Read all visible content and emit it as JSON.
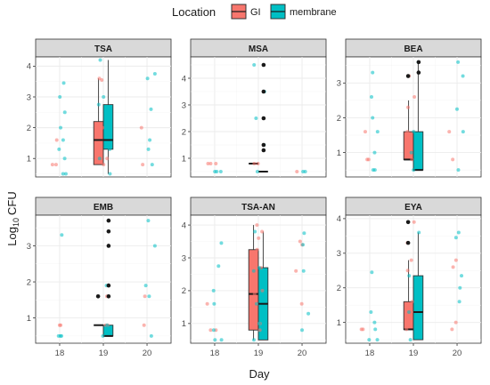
{
  "chart_data": {
    "type": "boxplot-faceted",
    "xlabel": "Day",
    "ylabel_base": "Log",
    "ylabel_sub": "10",
    "ylabel_unit": "CFU",
    "legend": {
      "title": "Location",
      "position": "top",
      "entries": [
        {
          "name": "GI",
          "color": "#F8766D"
        },
        {
          "name": "membrane",
          "color": "#00BFC4"
        }
      ]
    },
    "x_ticks": [
      "18",
      "19",
      "20"
    ],
    "colors": {
      "GI": "#F8766D",
      "membrane": "#00BFC4",
      "outlier": "#1a1a1a"
    },
    "panels": [
      {
        "title": "TSA",
        "ylim": [
          0.4,
          4.3
        ],
        "yticks": [
          1,
          2,
          3,
          4
        ],
        "boxes": {
          "GI": {
            "q1": 0.8,
            "median": 1.6,
            "q3": 2.2,
            "wmin": 0.8,
            "wmax": 3.6
          },
          "membrane": {
            "q1": 1.3,
            "median": 1.6,
            "q3": 2.75,
            "wmin": 0.5,
            "wmax": 4.2
          }
        },
        "outliers": [],
        "points": {
          "GI": [
            [
              18,
              0.8
            ],
            [
              18,
              1.6
            ],
            [
              18,
              0.8
            ],
            [
              19,
              3.6
            ],
            [
              19,
              3.55
            ],
            [
              19,
              2.0
            ],
            [
              19,
              1.5
            ],
            [
              19,
              1.0
            ],
            [
              19,
              0.8
            ],
            [
              20,
              0.8
            ],
            [
              20,
              2.0
            ]
          ],
          "membrane": [
            [
              18,
              0.5
            ],
            [
              18,
              1.0
            ],
            [
              18,
              1.3
            ],
            [
              18,
              1.6
            ],
            [
              18,
              2.0
            ],
            [
              18,
              2.5
            ],
            [
              18,
              3.0
            ],
            [
              18,
              3.45
            ],
            [
              18,
              0.5
            ],
            [
              19,
              4.2
            ],
            [
              19,
              2.75
            ],
            [
              19,
              1.3
            ],
            [
              19,
              0.5
            ],
            [
              19,
              1.0
            ],
            [
              19,
              3.0
            ],
            [
              20,
              3.75
            ],
            [
              20,
              3.6
            ],
            [
              20,
              1.6
            ],
            [
              20,
              2.6
            ],
            [
              20,
              0.8
            ],
            [
              20,
              1.3
            ]
          ]
        }
      },
      {
        "title": "MSA",
        "ylim": [
          0.3,
          4.8
        ],
        "yticks": [
          1,
          2,
          3,
          4
        ],
        "boxes": {
          "GI": {
            "q1": 0.8,
            "median": 0.8,
            "q3": 0.8,
            "wmin": 0.8,
            "wmax": 0.8
          },
          "membrane": {
            "q1": 0.5,
            "median": 0.5,
            "q3": 0.5,
            "wmin": 0.5,
            "wmax": 0.5
          }
        },
        "outliers": [
          [
            19.12,
            4.5
          ],
          [
            19.12,
            3.5
          ],
          [
            19.12,
            2.5
          ],
          [
            19.12,
            1.5
          ],
          [
            19.12,
            1.3
          ]
        ],
        "points": {
          "GI": [
            [
              18,
              0.8
            ],
            [
              18,
              0.8
            ],
            [
              18,
              0.8
            ],
            [
              19,
              0.8
            ],
            [
              19,
              0.8
            ],
            [
              20,
              0.5
            ]
          ],
          "membrane": [
            [
              18,
              0.5
            ],
            [
              18,
              0.5
            ],
            [
              18,
              0.5
            ],
            [
              19,
              0.5
            ],
            [
              19,
              4.5
            ],
            [
              19,
              3.5
            ],
            [
              19,
              2.5
            ],
            [
              19,
              1.5
            ],
            [
              20,
              0.5
            ],
            [
              20,
              0.5
            ]
          ]
        }
      },
      {
        "title": "BEA",
        "ylim": [
          0.3,
          3.75
        ],
        "yticks": [
          1,
          2,
          3
        ],
        "boxes": {
          "GI": {
            "q1": 0.8,
            "median": 0.8,
            "q3": 1.6,
            "wmin": 0.8,
            "wmax": 2.5
          },
          "membrane": {
            "q1": 0.5,
            "median": 0.5,
            "q3": 1.6,
            "wmin": 0.5,
            "wmax": 3.6
          }
        },
        "outliers": [
          [
            18.88,
            3.2
          ],
          [
            19.12,
            3.6
          ],
          [
            19.12,
            3.3
          ]
        ],
        "points": {
          "GI": [
            [
              18,
              0.8
            ],
            [
              18,
              1.6
            ],
            [
              18,
              0.8
            ],
            [
              19,
              2.6
            ],
            [
              19,
              2.3
            ],
            [
              19,
              3.2
            ],
            [
              19,
              0.8
            ],
            [
              19,
              1.6
            ],
            [
              20,
              1.6
            ],
            [
              20,
              0.8
            ]
          ],
          "membrane": [
            [
              18,
              0.5
            ],
            [
              18,
              1.0
            ],
            [
              18,
              1.6
            ],
            [
              18,
              2.6
            ],
            [
              18,
              3.3
            ],
            [
              18,
              0.5
            ],
            [
              18,
              2.0
            ],
            [
              19,
              3.6
            ],
            [
              19,
              1.6
            ],
            [
              19,
              0.5
            ],
            [
              19,
              1.0
            ],
            [
              20,
              3.6
            ],
            [
              20,
              3.2
            ],
            [
              20,
              2.25
            ],
            [
              20,
              0.5
            ],
            [
              20,
              1.6
            ]
          ]
        }
      },
      {
        "title": "EMB",
        "ylim": [
          0.3,
          3.85
        ],
        "yticks": [
          1,
          2,
          3
        ],
        "boxes": {
          "GI": {
            "q1": 0.8,
            "median": 0.8,
            "q3": 0.8,
            "wmin": 0.8,
            "wmax": 0.8
          },
          "membrane": {
            "q1": 0.5,
            "median": 0.5,
            "q3": 0.8,
            "wmin": 0.5,
            "wmax": 0.8
          }
        },
        "outliers": [
          [
            18.88,
            1.6
          ],
          [
            19.12,
            3.7
          ],
          [
            19.12,
            3.4
          ],
          [
            19.12,
            3.0
          ],
          [
            19.12,
            1.9
          ],
          [
            19.12,
            1.6
          ]
        ],
        "points": {
          "GI": [
            [
              18,
              0.8
            ],
            [
              18,
              0.8
            ],
            [
              19,
              0.8
            ],
            [
              19,
              1.6
            ],
            [
              19,
              0.8
            ],
            [
              20,
              1.6
            ],
            [
              20,
              0.8
            ]
          ],
          "membrane": [
            [
              18,
              0.5
            ],
            [
              18,
              0.5
            ],
            [
              18,
              3.3
            ],
            [
              18,
              0.5
            ],
            [
              19,
              0.5
            ],
            [
              19,
              1.9
            ],
            [
              19,
              0.8
            ],
            [
              20,
              3.7
            ],
            [
              20,
              3.0
            ],
            [
              20,
              1.9
            ],
            [
              20,
              1.6
            ],
            [
              20,
              0.5
            ]
          ]
        }
      },
      {
        "title": "TSA-AN",
        "ylim": [
          0.4,
          4.3
        ],
        "yticks": [
          1,
          2,
          3,
          4
        ],
        "boxes": {
          "GI": {
            "q1": 0.8,
            "median": 1.9,
            "q3": 3.25,
            "wmin": 0.5,
            "wmax": 4.0
          },
          "membrane": {
            "q1": 0.5,
            "median": 1.6,
            "q3": 2.7,
            "wmin": 0.5,
            "wmax": 3.8
          }
        },
        "outliers": [],
        "points": {
          "GI": [
            [
              18,
              0.8
            ],
            [
              18,
              1.6
            ],
            [
              18,
              0.8
            ],
            [
              19,
              4.0
            ],
            [
              19,
              3.8
            ],
            [
              19,
              3.6
            ],
            [
              19,
              3.25
            ],
            [
              19,
              3.0
            ],
            [
              19,
              2.7
            ],
            [
              19,
              2.0
            ],
            [
              19,
              1.9
            ],
            [
              19,
              1.6
            ],
            [
              19,
              1.3
            ],
            [
              19,
              1.0
            ],
            [
              19,
              0.8
            ],
            [
              20,
              3.5
            ],
            [
              20,
              3.4
            ],
            [
              20,
              2.6
            ],
            [
              20,
              1.6
            ]
          ],
          "membrane": [
            [
              18,
              0.5
            ],
            [
              18,
              0.8
            ],
            [
              18,
              1.6
            ],
            [
              18,
              2.0
            ],
            [
              18,
              2.75
            ],
            [
              18,
              3.45
            ],
            [
              18,
              0.5
            ],
            [
              19,
              3.8
            ],
            [
              19,
              2.7
            ],
            [
              19,
              2.6
            ],
            [
              19,
              1.6
            ],
            [
              19,
              1.0
            ],
            [
              19,
              0.5
            ],
            [
              20,
              3.75
            ],
            [
              20,
              3.4
            ],
            [
              20,
              2.6
            ],
            [
              20,
              1.3
            ],
            [
              20,
              0.8
            ]
          ]
        }
      },
      {
        "title": "EYA",
        "ylim": [
          0.4,
          4.1
        ],
        "yticks": [
          1,
          2,
          3,
          4
        ],
        "boxes": {
          "GI": {
            "q1": 0.8,
            "median": 0.8,
            "q3": 1.6,
            "wmin": 0.8,
            "wmax": 2.8
          },
          "membrane": {
            "q1": 0.5,
            "median": 1.3,
            "q3": 2.35,
            "wmin": 0.5,
            "wmax": 3.6
          }
        },
        "outliers": [
          [
            18.88,
            3.9
          ],
          [
            18.88,
            3.3
          ]
        ],
        "points": {
          "GI": [
            [
              18,
              0.8
            ],
            [
              18,
              0.8
            ],
            [
              19,
              3.9
            ],
            [
              19,
              3.3
            ],
            [
              19,
              2.8
            ],
            [
              19,
              2.5
            ],
            [
              19,
              1.6
            ],
            [
              19,
              1.3
            ],
            [
              19,
              0.8
            ],
            [
              20,
              2.8
            ],
            [
              20,
              2.6
            ],
            [
              20,
              1.0
            ],
            [
              20,
              0.8
            ]
          ],
          "membrane": [
            [
              18,
              0.5
            ],
            [
              18,
              0.8
            ],
            [
              18,
              1.0
            ],
            [
              18,
              1.3
            ],
            [
              18,
              2.45
            ],
            [
              18,
              0.5
            ],
            [
              19,
              3.6
            ],
            [
              19,
              2.35
            ],
            [
              19,
              1.3
            ],
            [
              19,
              0.5
            ],
            [
              20,
              3.6
            ],
            [
              20,
              3.45
            ],
            [
              20,
              2.35
            ],
            [
              20,
              2.0
            ],
            [
              20,
              1.6
            ]
          ]
        }
      }
    ]
  }
}
